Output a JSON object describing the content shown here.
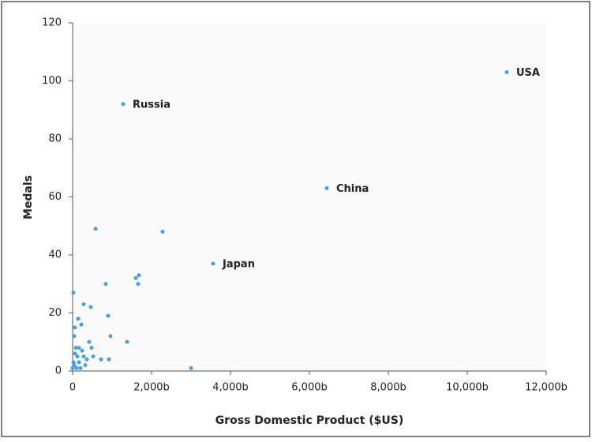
{
  "chart_data": {
    "type": "scatter",
    "x_label": "Gross Domestic Product ($US)",
    "y_label": "Medals",
    "xlim": [
      0,
      12000
    ],
    "ylim": [
      0,
      120
    ],
    "xticks": [
      {
        "value": 0,
        "label": "0"
      },
      {
        "value": 2000,
        "label": "2,000b"
      },
      {
        "value": 4000,
        "label": "4,000b"
      },
      {
        "value": 6000,
        "label": "6,000b"
      },
      {
        "value": 8000,
        "label": "8,000b"
      },
      {
        "value": 10000,
        "label": "10,000b"
      },
      {
        "value": 12000,
        "label": "12,000b"
      }
    ],
    "yticks": [
      0,
      20,
      40,
      60,
      80,
      100,
      120
    ],
    "series": [
      {
        "color": "#4a9ee0",
        "x": [
          11000,
          1280,
          6440,
          3560,
          580,
          2280,
          1600,
          1680,
          1660,
          840,
          900,
          960,
          1380,
          920,
          720,
          3000,
          280,
          460,
          20,
          140,
          220,
          60,
          40,
          420,
          480,
          520,
          80,
          160,
          240,
          120,
          280,
          160,
          320,
          40,
          100,
          0,
          360,
          60,
          200,
          20
        ],
        "values": [
          103,
          92,
          63,
          37,
          49,
          48,
          32,
          33,
          30,
          30,
          19,
          12,
          10,
          4,
          4,
          1,
          23,
          22,
          27,
          18,
          16,
          15,
          12,
          10,
          8,
          5,
          8,
          8,
          7,
          5,
          5,
          3,
          2,
          2,
          1,
          1,
          4,
          6,
          1,
          3
        ],
        "point_labels": [
          "USA",
          "Russia",
          "China",
          "Japan",
          null,
          null,
          null,
          null,
          null,
          null,
          null,
          null,
          null,
          null,
          null,
          null,
          null,
          null,
          null,
          null,
          null,
          null,
          null,
          null,
          null,
          null,
          null,
          null,
          null,
          null,
          null,
          null,
          null,
          null,
          null,
          null,
          null,
          null,
          null,
          null
        ]
      }
    ]
  }
}
